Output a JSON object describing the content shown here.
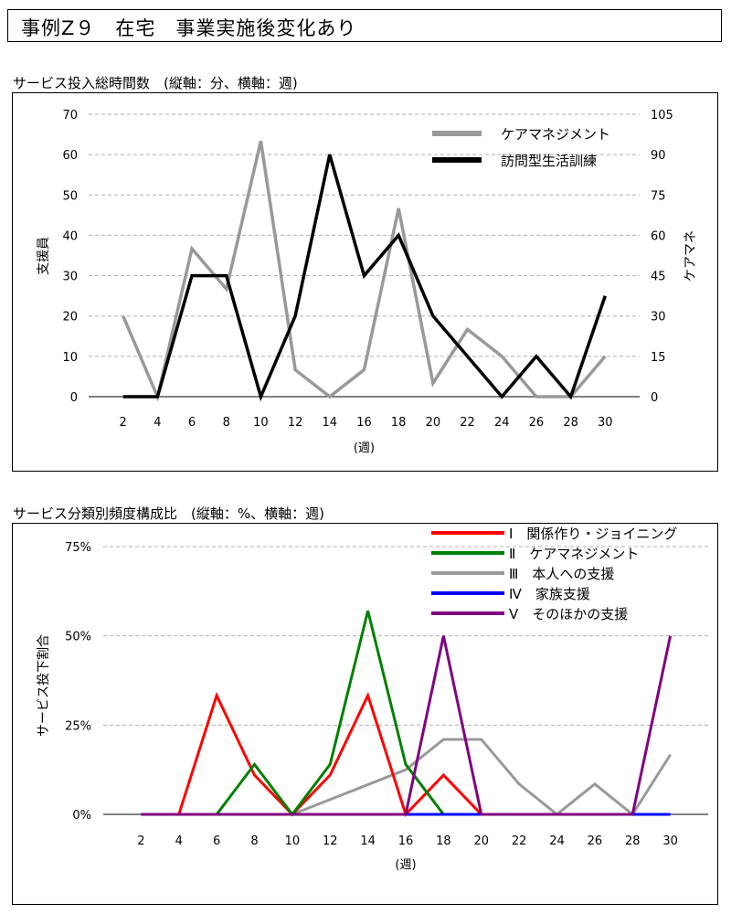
{
  "page": {
    "title": "事例Z９　在宅　事業実施後変化あり"
  },
  "chart_data": [
    {
      "type": "line",
      "title": "サービス投入総時間数　(縦軸：分、横軸：週)",
      "xlabel": "(週)",
      "ylabel": "支援員",
      "y2label": "ケアマネ",
      "x": [
        2,
        4,
        6,
        8,
        10,
        12,
        14,
        16,
        18,
        20,
        22,
        24,
        26,
        28,
        30
      ],
      "xticks": [
        "2",
        "4",
        "6",
        "8",
        "10",
        "12",
        "14",
        "16",
        "18",
        "20",
        "22",
        "24",
        "26",
        "28",
        "30"
      ],
      "ylim": [
        0,
        70
      ],
      "yticks": [
        "0",
        "10",
        "20",
        "30",
        "40",
        "50",
        "60",
        "70"
      ],
      "y2lim": [
        0,
        105
      ],
      "y2ticks": [
        "0",
        "15",
        "30",
        "45",
        "60",
        "75",
        "90",
        "105"
      ],
      "grid": true,
      "legend_position": "top-right",
      "series": [
        {
          "name": "ケアマネジメント",
          "axis": "right",
          "color": "#999999",
          "values": [
            30,
            0,
            55,
            40,
            95,
            10,
            0,
            10,
            70,
            5,
            25,
            15,
            0,
            0,
            15
          ]
        },
        {
          "name": "訪問型生活訓練",
          "axis": "left",
          "color": "#000000",
          "values": [
            0,
            0,
            30,
            30,
            0,
            20,
            60,
            30,
            40,
            20,
            10,
            0,
            10,
            0,
            25
          ]
        }
      ]
    },
    {
      "type": "line",
      "title": "サービス分類別頻度構成比　(縦軸：%、横軸：週)",
      "xlabel": "(週)",
      "ylabel": "サービス投下割合",
      "x": [
        2,
        4,
        6,
        8,
        10,
        12,
        14,
        16,
        18,
        20,
        22,
        24,
        26,
        28,
        30
      ],
      "xticks": [
        "2",
        "4",
        "6",
        "8",
        "10",
        "12",
        "14",
        "16",
        "18",
        "20",
        "22",
        "24",
        "26",
        "28",
        "30"
      ],
      "ylim": [
        0,
        75
      ],
      "yticks": [
        "0%",
        "25%",
        "50%",
        "75%"
      ],
      "grid": true,
      "legend_position": "top-right",
      "series": [
        {
          "name": "Ⅰ　関係作り・ジョイニング",
          "color": "#ff0000",
          "values": [
            0,
            0,
            33.3,
            11,
            0,
            11,
            33.3,
            0,
            11,
            0,
            0,
            0,
            0,
            0,
            0
          ]
        },
        {
          "name": "Ⅱ　ケアマネジメント",
          "color": "#008000",
          "values": [
            0,
            0,
            0,
            14,
            0,
            14,
            57,
            14,
            0,
            0,
            0,
            0,
            0,
            0,
            0
          ]
        },
        {
          "name": "Ⅲ　本人への支援",
          "color": "#999999",
          "values": [
            0,
            0,
            0,
            0,
            0,
            null,
            null,
            12.5,
            21,
            21,
            8.5,
            0,
            8.5,
            0,
            16.7
          ]
        },
        {
          "name": "Ⅳ　家族支援",
          "color": "#0000ff",
          "values": [
            0,
            0,
            0,
            0,
            0,
            0,
            0,
            0,
            0,
            0,
            0,
            0,
            0,
            0,
            0
          ]
        },
        {
          "name": "Ⅴ　そのほかの支援",
          "color": "#800080",
          "values": [
            0,
            0,
            0,
            0,
            0,
            0,
            0,
            0,
            50,
            0,
            0,
            0,
            0,
            0,
            50
          ]
        }
      ]
    }
  ]
}
